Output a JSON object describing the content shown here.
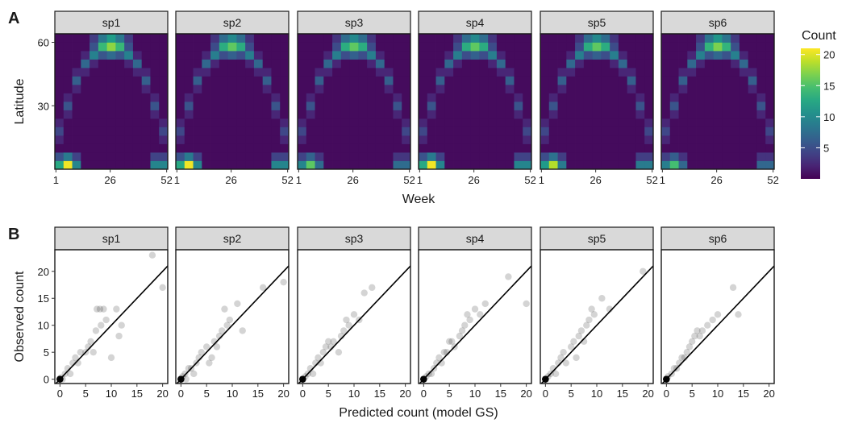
{
  "panels": {
    "a": "A",
    "b": "B"
  },
  "species": [
    "sp1",
    "sp2",
    "sp3",
    "sp4",
    "sp5",
    "sp6"
  ],
  "chart_data": [
    {
      "type": "heatmap",
      "xlabel": "Week",
      "ylabel": "Latitude",
      "xticks": [
        1,
        26,
        52
      ],
      "yticks": [
        30,
        60
      ],
      "xlim": [
        0.5,
        52.5
      ],
      "ylim": [
        0,
        64
      ],
      "grid_weeks": 13,
      "grid_lat_rows": 16,
      "legend": {
        "title": "Count",
        "ticks": [
          5,
          10,
          15,
          20
        ],
        "range": [
          0,
          21
        ],
        "placement": "right"
      },
      "colorscale": "viridis",
      "facets": [
        {
          "name": "sp1",
          "peak_summer": 17,
          "peak_winter": 20,
          "start": 0
        },
        {
          "name": "sp2",
          "peak_summer": 14,
          "peak_winter": 20,
          "start": 0
        },
        {
          "name": "sp3",
          "peak_summer": 14,
          "peak_winter": 15,
          "start": 0
        },
        {
          "name": "sp4",
          "peak_summer": 14,
          "peak_winter": 20,
          "start": 0
        },
        {
          "name": "sp5",
          "peak_summer": 14,
          "peak_winter": 18,
          "start": 0
        },
        {
          "name": "sp6",
          "peak_summer": 16,
          "peak_winter": 14,
          "start": 0
        }
      ]
    },
    {
      "type": "scatter",
      "xlabel": "Predicted count (model GS)",
      "ylabel": "Observed count",
      "xticks": [
        0,
        5,
        10,
        15,
        20
      ],
      "yticks": [
        0,
        5,
        10,
        15,
        20
      ],
      "xlim": [
        -1,
        21
      ],
      "ylim": [
        -0.8,
        24
      ],
      "reference_line": "y = x",
      "facets": [
        {
          "name": "sp1",
          "points": [
            [
              0,
              0
            ],
            [
              0.2,
              0.3
            ],
            [
              0.5,
              0
            ],
            [
              1,
              1
            ],
            [
              1.5,
              2
            ],
            [
              2,
              1
            ],
            [
              2.5,
              3
            ],
            [
              3,
              4
            ],
            [
              3.5,
              3
            ],
            [
              4,
              5
            ],
            [
              5,
              5
            ],
            [
              5.5,
              6
            ],
            [
              6,
              7
            ],
            [
              6.5,
              5
            ],
            [
              7,
              9
            ],
            [
              7.2,
              13
            ],
            [
              7.8,
              13
            ],
            [
              8,
              10
            ],
            [
              8.5,
              13
            ],
            [
              9,
              11
            ],
            [
              10,
              4
            ],
            [
              11,
              13
            ],
            [
              11.5,
              8
            ],
            [
              12,
              10
            ],
            [
              18,
              23
            ],
            [
              20,
              17
            ]
          ]
        },
        {
          "name": "sp2",
          "points": [
            [
              0,
              0
            ],
            [
              0.3,
              0.5
            ],
            [
              0.8,
              1
            ],
            [
              1,
              0
            ],
            [
              1.5,
              2
            ],
            [
              2,
              2
            ],
            [
              2.5,
              1
            ],
            [
              3,
              3
            ],
            [
              3.5,
              4
            ],
            [
              4,
              5
            ],
            [
              5,
              6
            ],
            [
              5.5,
              3
            ],
            [
              6,
              4
            ],
            [
              6.5,
              7
            ],
            [
              7,
              6
            ],
            [
              7.5,
              8
            ],
            [
              8,
              9
            ],
            [
              8.5,
              13
            ],
            [
              9,
              10
            ],
            [
              9.5,
              11
            ],
            [
              11,
              14
            ],
            [
              12,
              9
            ],
            [
              16,
              17
            ],
            [
              20,
              18
            ]
          ]
        },
        {
          "name": "sp3",
          "points": [
            [
              0,
              0
            ],
            [
              0.5,
              0.5
            ],
            [
              1,
              1
            ],
            [
              1.5,
              2
            ],
            [
              2,
              1
            ],
            [
              2.5,
              3
            ],
            [
              3,
              4
            ],
            [
              3.5,
              3
            ],
            [
              4,
              5
            ],
            [
              4.5,
              6
            ],
            [
              5,
              7
            ],
            [
              5.5,
              6
            ],
            [
              6,
              7
            ],
            [
              7,
              5
            ],
            [
              7.5,
              8
            ],
            [
              8,
              9
            ],
            [
              8.5,
              11
            ],
            [
              9,
              10
            ],
            [
              10,
              12
            ],
            [
              11,
              11
            ],
            [
              12,
              16
            ],
            [
              13.5,
              17
            ]
          ]
        },
        {
          "name": "sp4",
          "points": [
            [
              0,
              0
            ],
            [
              0.5,
              0.5
            ],
            [
              1,
              1
            ],
            [
              1.5,
              1
            ],
            [
              2,
              2
            ],
            [
              2.5,
              3
            ],
            [
              3,
              4
            ],
            [
              3.5,
              3
            ],
            [
              4,
              5
            ],
            [
              4.5,
              5
            ],
            [
              5,
              7
            ],
            [
              5.5,
              7
            ],
            [
              6,
              6
            ],
            [
              7,
              8
            ],
            [
              7.5,
              9
            ],
            [
              8,
              10
            ],
            [
              8.5,
              12
            ],
            [
              9,
              11
            ],
            [
              10,
              13
            ],
            [
              11,
              12
            ],
            [
              12,
              14
            ],
            [
              16.5,
              19
            ],
            [
              20,
              14
            ]
          ]
        },
        {
          "name": "sp5",
          "points": [
            [
              0,
              0
            ],
            [
              0.5,
              0.5
            ],
            [
              1,
              1
            ],
            [
              1.5,
              2
            ],
            [
              2,
              1
            ],
            [
              2.5,
              3
            ],
            [
              3,
              4
            ],
            [
              3.5,
              5
            ],
            [
              4,
              3
            ],
            [
              5,
              6
            ],
            [
              5.5,
              7
            ],
            [
              6,
              4
            ],
            [
              6.5,
              8
            ],
            [
              7,
              9
            ],
            [
              7.5,
              7
            ],
            [
              8,
              10
            ],
            [
              8.5,
              11
            ],
            [
              9,
              13
            ],
            [
              9.5,
              12
            ],
            [
              11,
              15
            ],
            [
              12.5,
              13
            ],
            [
              19,
              20
            ]
          ]
        },
        {
          "name": "sp6",
          "points": [
            [
              0,
              0
            ],
            [
              0.3,
              0.5
            ],
            [
              1,
              1
            ],
            [
              1.5,
              2
            ],
            [
              2,
              2
            ],
            [
              2.5,
              3
            ],
            [
              3,
              4
            ],
            [
              3.5,
              4
            ],
            [
              4,
              5
            ],
            [
              4.5,
              6
            ],
            [
              5,
              7
            ],
            [
              5.5,
              8
            ],
            [
              6,
              9
            ],
            [
              6.5,
              8
            ],
            [
              7,
              9
            ],
            [
              8,
              10
            ],
            [
              9,
              11
            ],
            [
              10,
              12
            ],
            [
              13,
              17
            ],
            [
              14,
              12
            ]
          ]
        }
      ]
    }
  ]
}
